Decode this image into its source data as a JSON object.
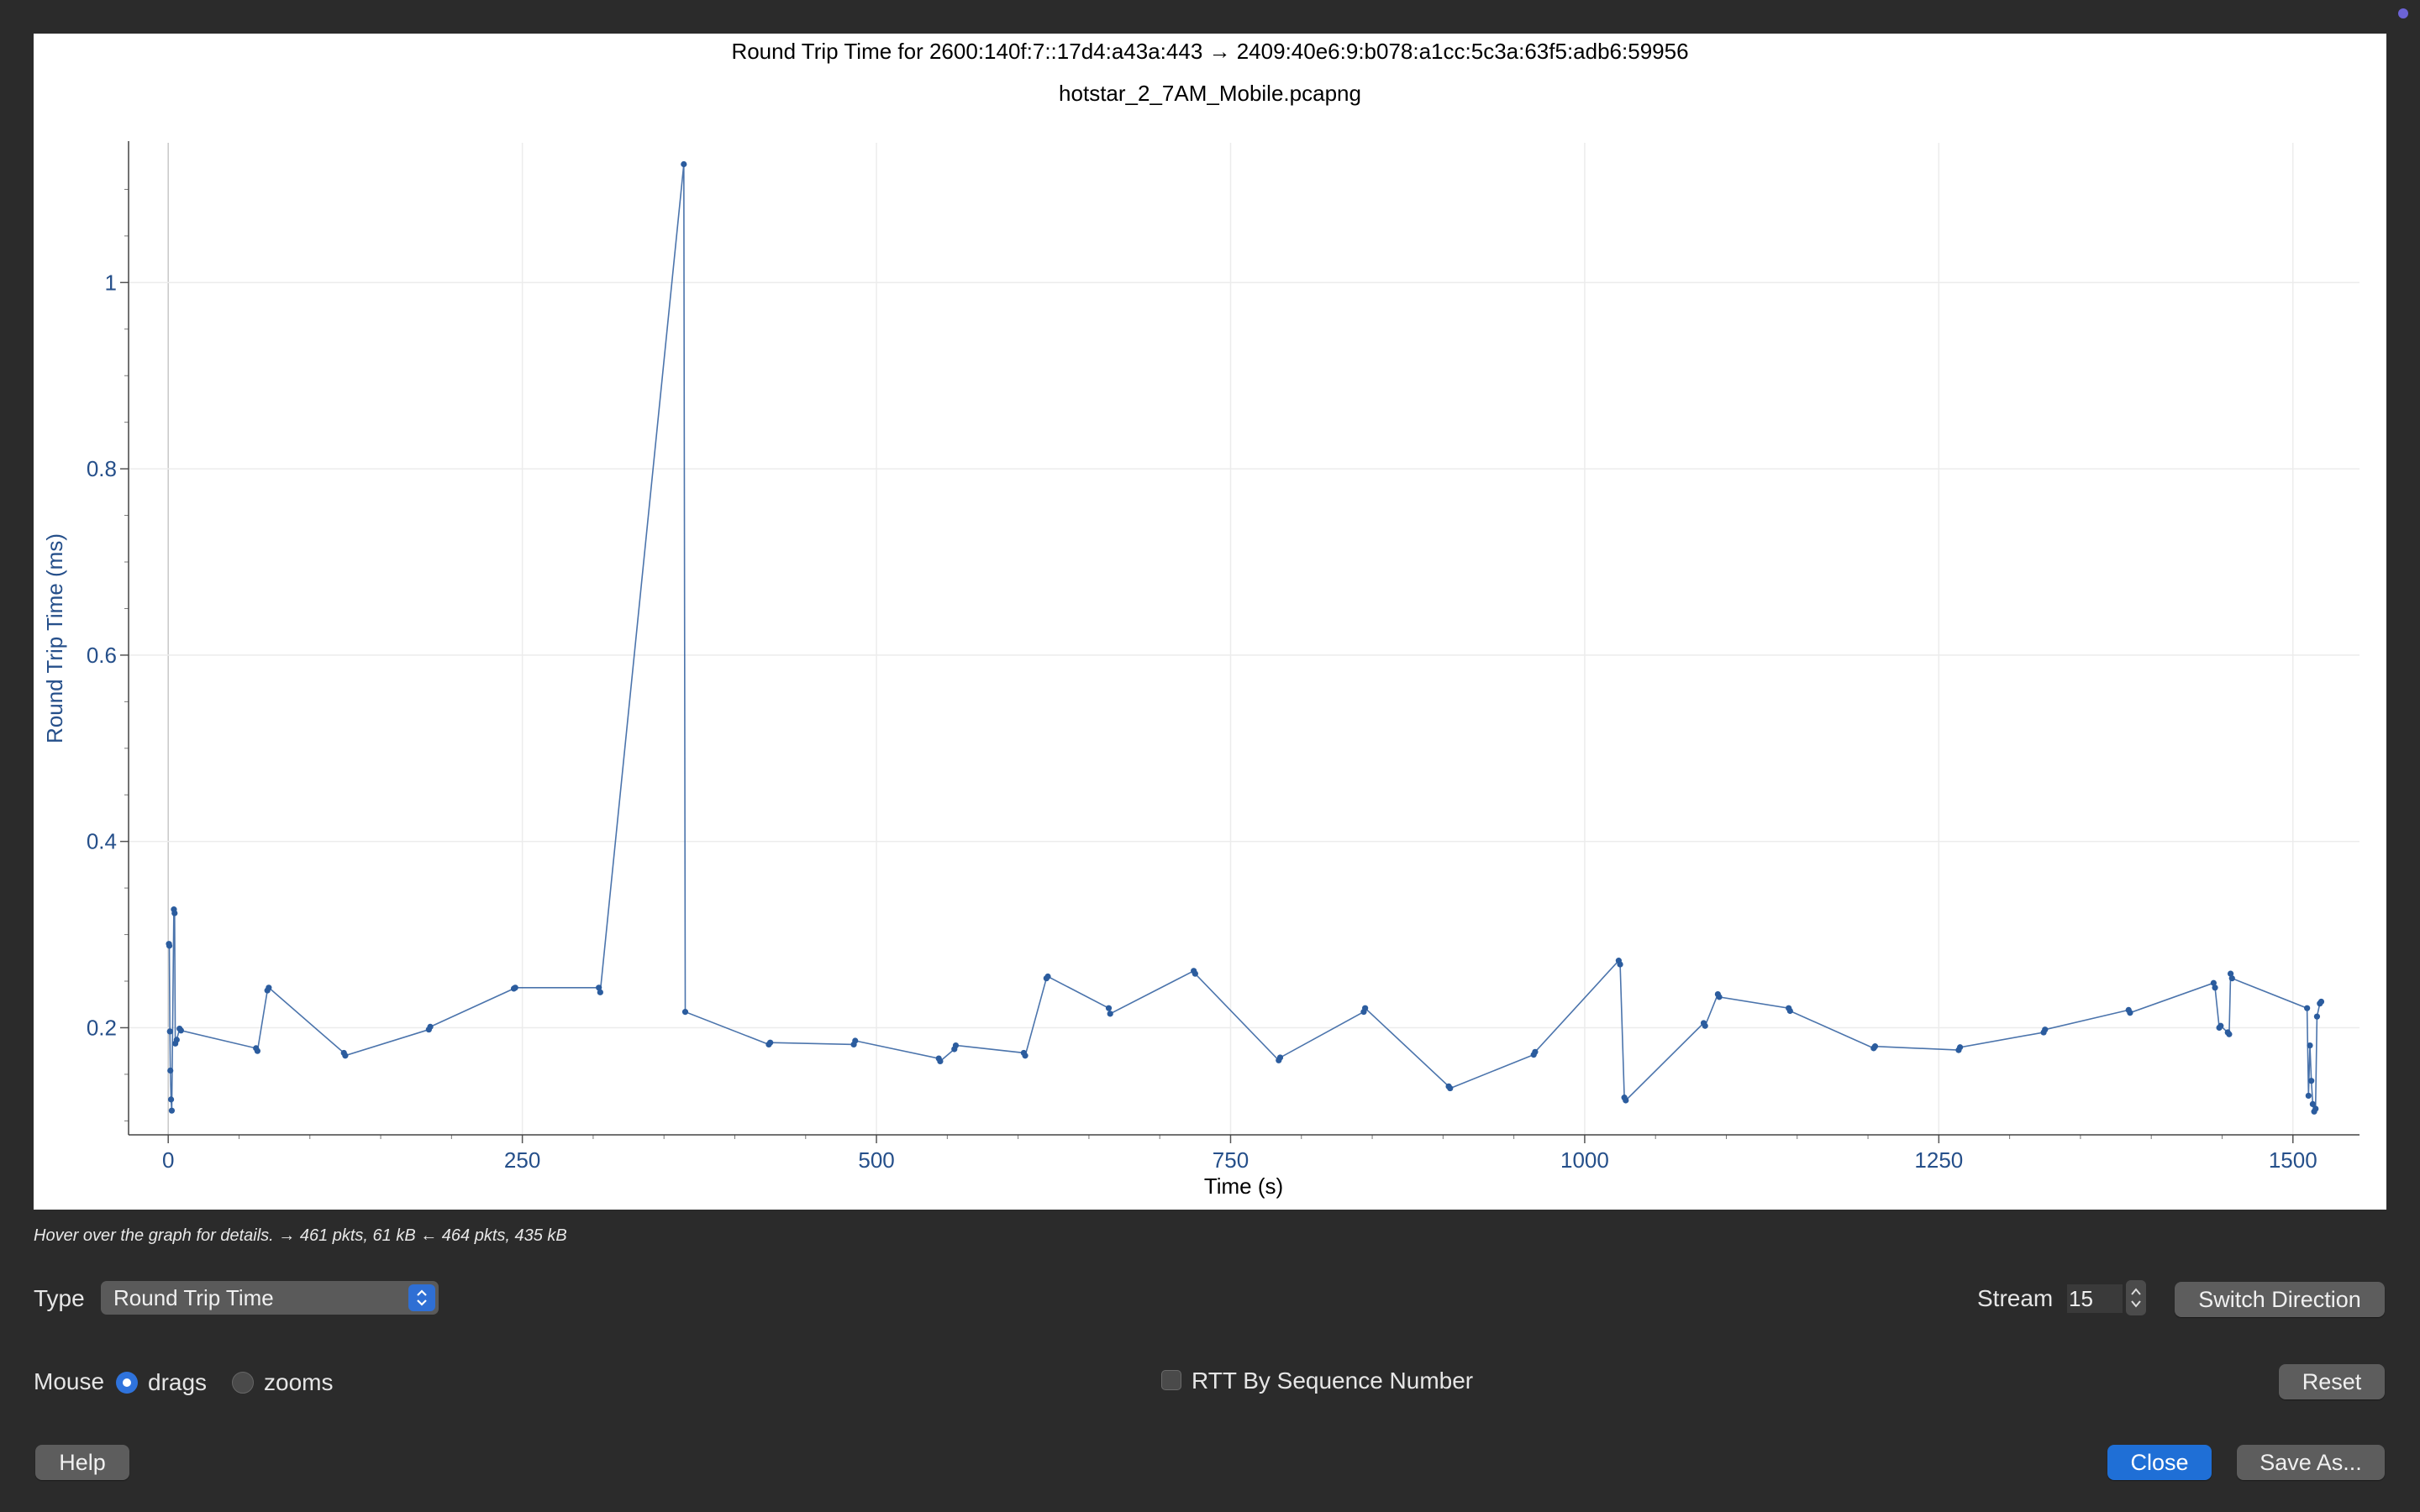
{
  "chart_data": {
    "type": "scatter",
    "title": "Round Trip Time for 2600:140f:7::17d4:a43a:443 → 2409:40e6:9:b078:a1cc:5c3a:63f5:adb6:59956",
    "subtitle": "hotstar_2_7AM_Mobile.pcapng",
    "xlabel": "Time (s)",
    "ylabel": "Round Trip Time (ms)",
    "xlim": [
      -28,
      1547
    ],
    "ylim": [
      0.085,
      1.15
    ],
    "x_ticks": [
      0,
      250,
      500,
      750,
      1000,
      1250,
      1500
    ],
    "y_ticks": [
      0.2,
      0.4,
      0.6,
      0.8,
      1
    ],
    "x_tick_labels": [
      "0",
      "250",
      "500",
      "750",
      "1000",
      "1250",
      "1500"
    ],
    "y_tick_labels": [
      "0.2",
      "0.4",
      "0.6",
      "0.8",
      "1"
    ],
    "grid": true,
    "connected_line": true,
    "series_color": "#2b5c9e",
    "x": [
      0.5,
      0.8,
      1.2,
      1.5,
      2,
      2.5,
      4,
      4.5,
      5,
      6,
      8,
      9,
      62,
      63,
      70,
      71,
      124,
      125,
      184,
      185,
      244,
      245,
      304,
      305,
      364,
      365,
      424,
      425,
      484,
      485,
      544,
      545,
      555,
      556,
      604,
      605,
      620,
      621,
      664,
      665,
      724,
      725,
      784,
      785,
      844,
      845,
      904,
      905,
      964,
      965,
      1024,
      1025,
      1028,
      1029,
      1084,
      1085,
      1094,
      1095,
      1144,
      1145,
      1204,
      1205,
      1264,
      1265,
      1324,
      1325,
      1384,
      1385,
      1444,
      1445,
      1448,
      1449,
      1454,
      1455,
      1456,
      1457,
      1510,
      1511,
      1512,
      1513,
      1514,
      1515,
      1516,
      1517,
      1519,
      1520
    ],
    "y": [
      0.29,
      0.288,
      0.196,
      0.154,
      0.123,
      0.111,
      0.327,
      0.323,
      0.183,
      0.187,
      0.199,
      0.197,
      0.178,
      0.175,
      0.24,
      0.243,
      0.173,
      0.17,
      0.198,
      0.201,
      0.242,
      0.243,
      0.243,
      0.238,
      1.127,
      0.217,
      0.182,
      0.184,
      0.182,
      0.186,
      0.167,
      0.164,
      0.177,
      0.181,
      0.173,
      0.17,
      0.253,
      0.255,
      0.221,
      0.215,
      0.261,
      0.258,
      0.165,
      0.168,
      0.217,
      0.221,
      0.137,
      0.135,
      0.171,
      0.174,
      0.272,
      0.268,
      0.125,
      0.122,
      0.205,
      0.202,
      0.236,
      0.233,
      0.221,
      0.218,
      0.178,
      0.18,
      0.176,
      0.179,
      0.195,
      0.198,
      0.219,
      0.216,
      0.248,
      0.243,
      0.2,
      0.202,
      0.195,
      0.193,
      0.258,
      0.253,
      0.221,
      0.127,
      0.181,
      0.143,
      0.118,
      0.11,
      0.113,
      0.212,
      0.226,
      0.228
    ]
  },
  "hint_text": "Hover over the graph for details. → 461 pkts, 61 kB ← 464 pkts, 435 kB",
  "controls": {
    "type_label": "Type",
    "type_value": "Round Trip Time",
    "stream_label": "Stream",
    "stream_value": "15",
    "switch_direction": "Switch Direction",
    "mouse_label": "Mouse",
    "drags_label": "drags",
    "zooms_label": "zooms",
    "mouse_mode": "drags",
    "rtt_by_seq_label": "RTT By Sequence Number",
    "rtt_by_seq_checked": false,
    "reset": "Reset",
    "help": "Help",
    "close": "Close",
    "save_as": "Save As..."
  },
  "colors": {
    "window_bg": "#2b2b2b",
    "plot_bg": "#ffffff",
    "axis_text": "#254f8a",
    "primary_button": "#1f6fd6"
  }
}
